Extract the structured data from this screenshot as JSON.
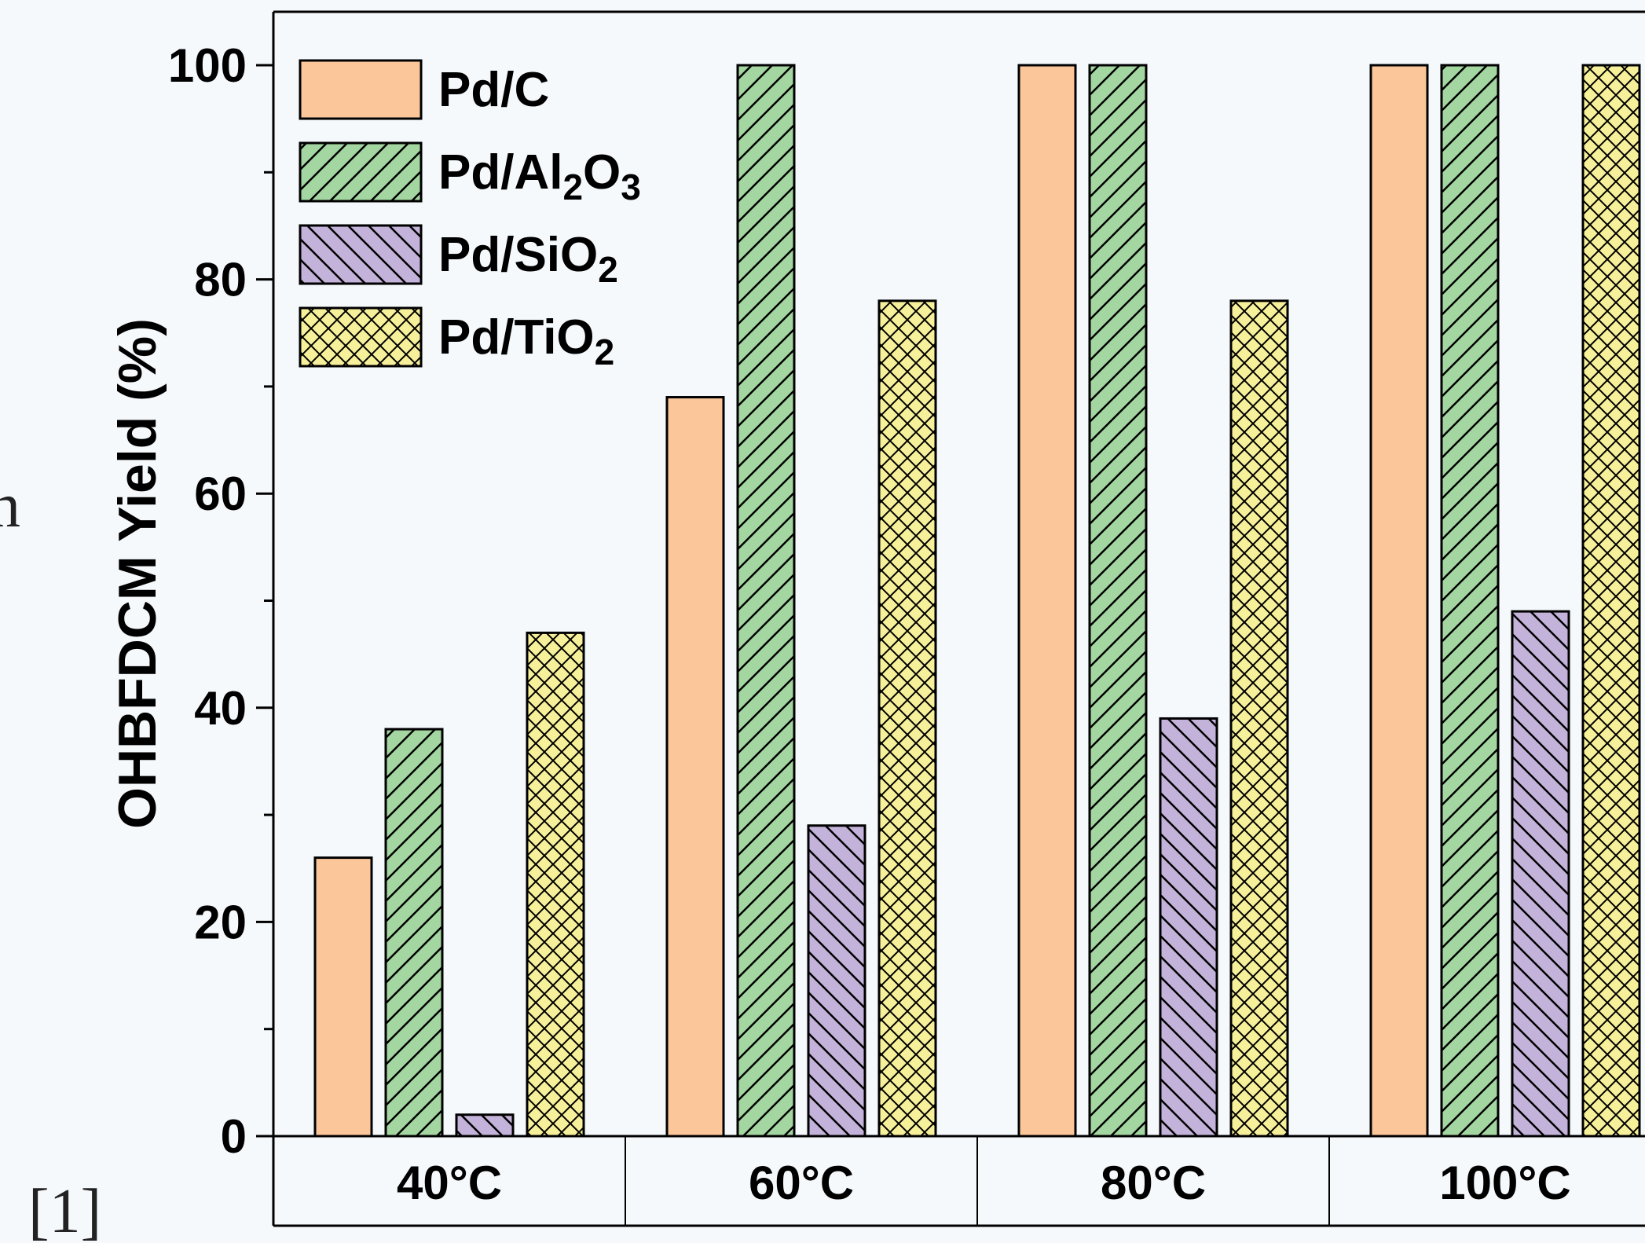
{
  "chart_data": {
    "type": "bar",
    "categories": [
      "40°C",
      "60°C",
      "80°C",
      "100°C"
    ],
    "ylabel": "OHBFDCM Yield (%)",
    "xlabel": "",
    "ylim": [
      0,
      105
    ],
    "yticks": [
      "0",
      "20",
      "40",
      "60",
      "80",
      "100"
    ],
    "grid": false,
    "legend_position": "top-left",
    "series": [
      {
        "name": "Pd/C",
        "legend_main": "Pd/C",
        "legend_parts": [],
        "values": [
          26,
          69,
          100,
          100
        ],
        "color": "#fbc69a",
        "pattern": "solid"
      },
      {
        "name": "Pd/Al2O3",
        "legend_main": "Pd/Al",
        "legend_parts": [
          {
            "sub": "2",
            "text": "O"
          },
          {
            "sub": "3",
            "text": ""
          }
        ],
        "values": [
          38,
          100,
          100,
          100
        ],
        "color": "#a3d6a0",
        "pattern": "forward-hatch"
      },
      {
        "name": "Pd/SiO2",
        "legend_main": "Pd/SiO",
        "legend_parts": [
          {
            "sub": "2",
            "text": ""
          }
        ],
        "values": [
          2,
          29,
          39,
          49
        ],
        "color": "#c3b2d9",
        "pattern": "back-hatch"
      },
      {
        "name": "Pd/TiO2",
        "legend_main": "Pd/TiO",
        "legend_parts": [
          {
            "sub": "2",
            "text": ""
          }
        ],
        "values": [
          47,
          78,
          78,
          100
        ],
        "color": "#f7f09a",
        "pattern": "cross-hatch"
      }
    ]
  },
  "side_texts": {
    "left_fragment": "n",
    "citation": "[1]"
  }
}
